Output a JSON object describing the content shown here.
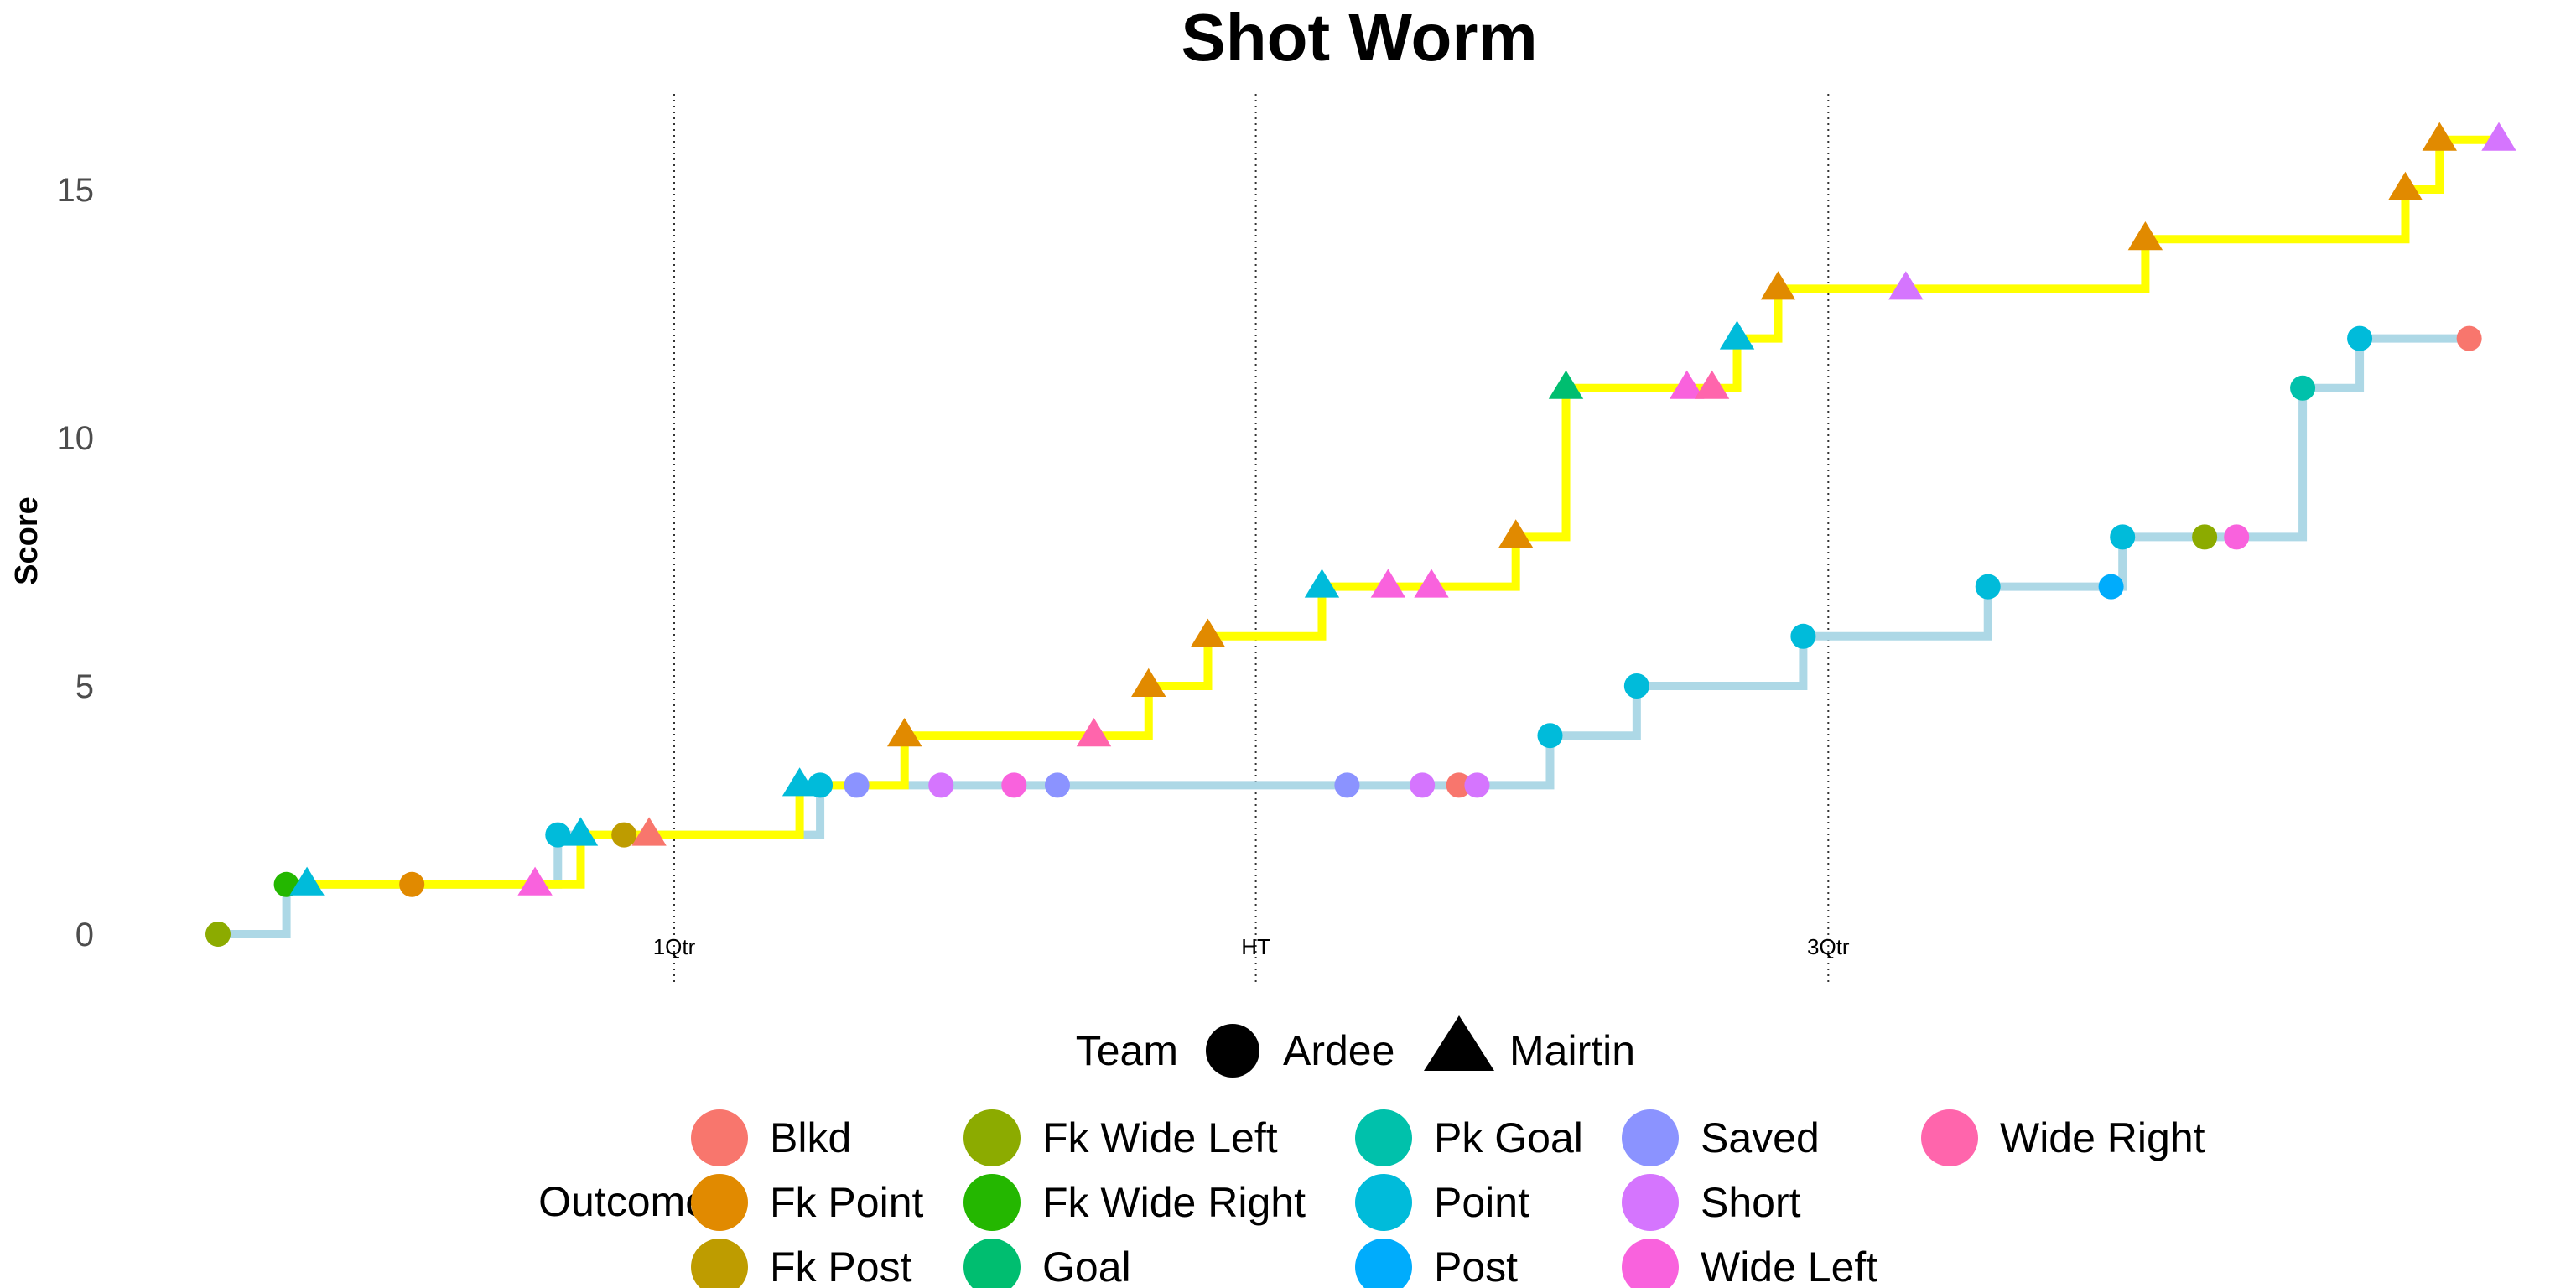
{
  "chart_data": {
    "type": "line",
    "subtype": "step",
    "title": "Shot Worm",
    "xlabel": "",
    "ylabel": "Score",
    "ylim": [
      -1,
      16.5
    ],
    "yticks": [
      0,
      5,
      10,
      15
    ],
    "x_axis_shown": false,
    "grid": false,
    "period_markers": [
      {
        "label": "1Qtr",
        "x": 0.2
      },
      {
        "label": "HT",
        "x": 0.455
      },
      {
        "label": "3Qtr",
        "x": 0.706
      }
    ],
    "colors": {
      "Blkd": "#F8766D",
      "Fk Point": "#E18A00",
      "Fk Post": "#BE9C00",
      "Fk Wide Left": "#8CAB00",
      "Fk Wide Right": "#24B700",
      "Goal": "#00BE70",
      "Pk Goal": "#00C1AB",
      "Point": "#00BBDA",
      "Post": "#00ACFC",
      "Saved": "#8B93FF",
      "Short": "#D575FE",
      "Wide Left": "#F962DD",
      "Wide Right": "#FF65AC"
    },
    "series": [
      {
        "name": "Ardee",
        "shape": "circle",
        "line_color": "#ADD8E6",
        "points": [
          {
            "x": 0.0,
            "y": 0,
            "outcome": "Fk Wide Left"
          },
          {
            "x": 0.03,
            "y": 1,
            "outcome": "Fk Wide Right"
          },
          {
            "x": 0.085,
            "y": 1,
            "outcome": "Fk Point"
          },
          {
            "x": 0.149,
            "y": 2,
            "outcome": "Point"
          },
          {
            "x": 0.178,
            "y": 2,
            "outcome": "Fk Post"
          },
          {
            "x": 0.264,
            "y": 3,
            "outcome": "Point"
          },
          {
            "x": 0.28,
            "y": 3,
            "outcome": "Saved"
          },
          {
            "x": 0.317,
            "y": 3,
            "outcome": "Short"
          },
          {
            "x": 0.349,
            "y": 3,
            "outcome": "Wide Left"
          },
          {
            "x": 0.368,
            "y": 3,
            "outcome": "Saved"
          },
          {
            "x": 0.495,
            "y": 3,
            "outcome": "Saved"
          },
          {
            "x": 0.528,
            "y": 3,
            "outcome": "Short"
          },
          {
            "x": 0.544,
            "y": 3,
            "outcome": "Blkd"
          },
          {
            "x": 0.552,
            "y": 3,
            "outcome": "Short"
          },
          {
            "x": 0.584,
            "y": 4,
            "outcome": "Point"
          },
          {
            "x": 0.622,
            "y": 5,
            "outcome": "Point"
          },
          {
            "x": 0.695,
            "y": 6,
            "outcome": "Point"
          },
          {
            "x": 0.776,
            "y": 7,
            "outcome": "Point"
          },
          {
            "x": 0.83,
            "y": 7,
            "outcome": "Post"
          },
          {
            "x": 0.835,
            "y": 8,
            "outcome": "Point"
          },
          {
            "x": 0.871,
            "y": 8,
            "outcome": "Fk Wide Left"
          },
          {
            "x": 0.885,
            "y": 8,
            "outcome": "Wide Left"
          },
          {
            "x": 0.914,
            "y": 11,
            "outcome": "Pk Goal"
          },
          {
            "x": 0.939,
            "y": 12,
            "outcome": "Point"
          },
          {
            "x": 0.987,
            "y": 12,
            "outcome": "Blkd"
          }
        ]
      },
      {
        "name": "Mairtin",
        "shape": "triangle",
        "line_color": "#FFFF00",
        "points": [
          {
            "x": 0.039,
            "y": 1,
            "outcome": "Point"
          },
          {
            "x": 0.139,
            "y": 1,
            "outcome": "Wide Left"
          },
          {
            "x": 0.159,
            "y": 2,
            "outcome": "Point"
          },
          {
            "x": 0.189,
            "y": 2,
            "outcome": "Blkd"
          },
          {
            "x": 0.255,
            "y": 3,
            "outcome": "Point"
          },
          {
            "x": 0.301,
            "y": 4,
            "outcome": "Fk Point"
          },
          {
            "x": 0.384,
            "y": 4,
            "outcome": "Wide Right"
          },
          {
            "x": 0.408,
            "y": 5,
            "outcome": "Fk Point"
          },
          {
            "x": 0.434,
            "y": 6,
            "outcome": "Fk Point"
          },
          {
            "x": 0.484,
            "y": 7,
            "outcome": "Point"
          },
          {
            "x": 0.513,
            "y": 7,
            "outcome": "Wide Left"
          },
          {
            "x": 0.532,
            "y": 7,
            "outcome": "Wide Left"
          },
          {
            "x": 0.569,
            "y": 8,
            "outcome": "Fk Point"
          },
          {
            "x": 0.591,
            "y": 11,
            "outcome": "Goal"
          },
          {
            "x": 0.644,
            "y": 11,
            "outcome": "Wide Left"
          },
          {
            "x": 0.655,
            "y": 11,
            "outcome": "Wide Right"
          },
          {
            "x": 0.666,
            "y": 12,
            "outcome": "Point"
          },
          {
            "x": 0.684,
            "y": 13,
            "outcome": "Fk Point"
          },
          {
            "x": 0.74,
            "y": 13,
            "outcome": "Short"
          },
          {
            "x": 0.845,
            "y": 14,
            "outcome": "Fk Point"
          },
          {
            "x": 0.959,
            "y": 15,
            "outcome": "Fk Point"
          },
          {
            "x": 0.974,
            "y": 16,
            "outcome": "Fk Point"
          },
          {
            "x": 1.0,
            "y": 16,
            "outcome": "Short"
          }
        ]
      }
    ],
    "legend": {
      "placement": "bottom",
      "team_title": "Team",
      "team_entries": [
        "Ardee",
        "Mairtin"
      ],
      "outcome_title": "Outcome",
      "outcome_entries": [
        "Blkd",
        "Fk Point",
        "Fk Post",
        "Fk Wide Left",
        "Fk Wide Right",
        "Goal",
        "Pk Goal",
        "Point",
        "Post",
        "Saved",
        "Short",
        "Wide Left",
        "Wide Right"
      ]
    }
  }
}
